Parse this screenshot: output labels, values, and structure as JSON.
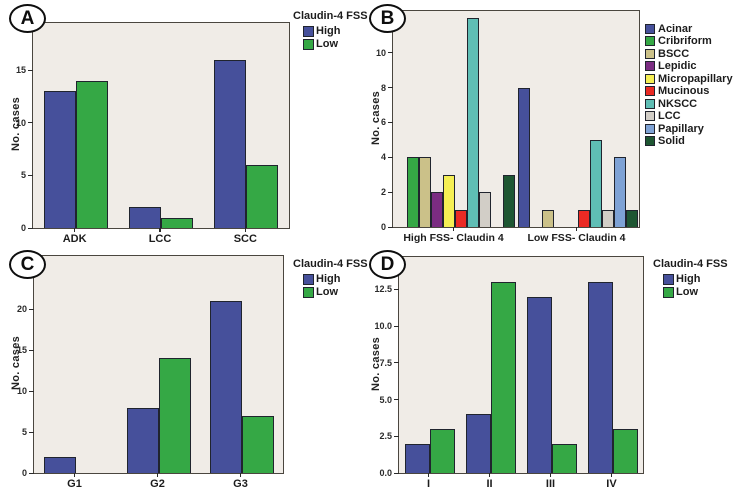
{
  "figure": {
    "background": "#ffffff",
    "plot_background": "#F0ECE7",
    "text_color": "#1c1c1c",
    "accent_colors": {
      "high_blue": "#46509B",
      "low_green": "#35A845"
    }
  },
  "panels": [
    {
      "label": "A",
      "legend_title": "Claudin-4 FSS",
      "chart_data": {
        "type": "bar",
        "title": "",
        "ylabel": "No. cases",
        "xlabel": "",
        "categories": [
          "ADK",
          "LCC",
          "SCC"
        ],
        "series": [
          {
            "name": "High",
            "color": "#46509B",
            "values": [
              13,
              2,
              16
            ]
          },
          {
            "name": "Low",
            "color": "#35A845",
            "values": [
              14,
              1,
              6
            ]
          }
        ],
        "yticks": [
          0,
          5,
          10,
          15
        ],
        "ytick_labels": [
          "0",
          "5",
          "10",
          "15"
        ],
        "ylim": [
          0,
          19.5
        ],
        "grid": false,
        "legend_position": "outside-top-right"
      }
    },
    {
      "label": "B",
      "legend_title": "",
      "chart_data": {
        "type": "bar",
        "title": "",
        "ylabel": "No. cases",
        "xlabel": "",
        "categories": [
          "High FSS- Claudin 4",
          "Low FSS- Claudin 4"
        ],
        "series": [
          {
            "name": "Acinar",
            "color": "#46509B",
            "values": [
              0,
              8
            ]
          },
          {
            "name": "Cribriform",
            "color": "#35A845",
            "values": [
              4,
              0
            ]
          },
          {
            "name": "BSCC",
            "color": "#CBC189",
            "values": [
              4,
              1
            ]
          },
          {
            "name": "Lepidic",
            "color": "#7B2C82",
            "values": [
              2,
              0
            ]
          },
          {
            "name": "Micropapillary",
            "color": "#F5EF54",
            "values": [
              3,
              0
            ]
          },
          {
            "name": "Mucinous",
            "color": "#EA2A24",
            "values": [
              1,
              1
            ]
          },
          {
            "name": "NKSCC",
            "color": "#5FBEB5",
            "values": [
              12,
              5
            ]
          },
          {
            "name": "LCC",
            "color": "#D2CEC7",
            "values": [
              2,
              1
            ]
          },
          {
            "name": "Papillary",
            "color": "#7EA2D5",
            "values": [
              0,
              4
            ]
          },
          {
            "name": "Solid",
            "color": "#1E5632",
            "values": [
              3,
              1
            ]
          }
        ],
        "yticks": [
          0,
          2,
          4,
          6,
          8,
          10
        ],
        "ytick_labels": [
          "0",
          "2",
          "4",
          "6",
          "8",
          "10"
        ],
        "ylim": [
          0,
          12.4
        ],
        "grid": false,
        "legend_position": "outside-right"
      }
    },
    {
      "label": "C",
      "legend_title": "Claudin-4 FSS",
      "chart_data": {
        "type": "bar",
        "title": "",
        "ylabel": "No. cases",
        "xlabel": "",
        "categories": [
          "G1",
          "G2",
          "G3"
        ],
        "series": [
          {
            "name": "High",
            "color": "#46509B",
            "values": [
              2,
              8,
              21
            ]
          },
          {
            "name": "Low",
            "color": "#35A845",
            "values": [
              0,
              14,
              7
            ]
          }
        ],
        "yticks": [
          0,
          5,
          10,
          15,
          20
        ],
        "ytick_labels": [
          "0",
          "5",
          "10",
          "15",
          "20"
        ],
        "ylim": [
          0,
          26.5
        ],
        "grid": false,
        "legend_position": "outside-top-right"
      }
    },
    {
      "label": "D",
      "legend_title": "Claudin-4 FSS",
      "chart_data": {
        "type": "bar",
        "title": "",
        "ylabel": "No. cases",
        "xlabel": "",
        "categories": [
          "I",
          "II",
          "III",
          "IV"
        ],
        "series": [
          {
            "name": "High",
            "color": "#46509B",
            "values": [
              2,
              4,
              12,
              13
            ]
          },
          {
            "name": "Low",
            "color": "#35A845",
            "values": [
              3,
              13,
              2,
              3
            ]
          }
        ],
        "yticks": [
          0,
          2.5,
          5,
          7.5,
          10,
          12.5
        ],
        "ytick_labels": [
          "0.0",
          "2.5",
          "5.0",
          "7.5",
          "10.0",
          "12.5"
        ],
        "ylim": [
          0,
          14.7
        ],
        "grid": false,
        "legend_position": "outside-top-right"
      }
    }
  ]
}
